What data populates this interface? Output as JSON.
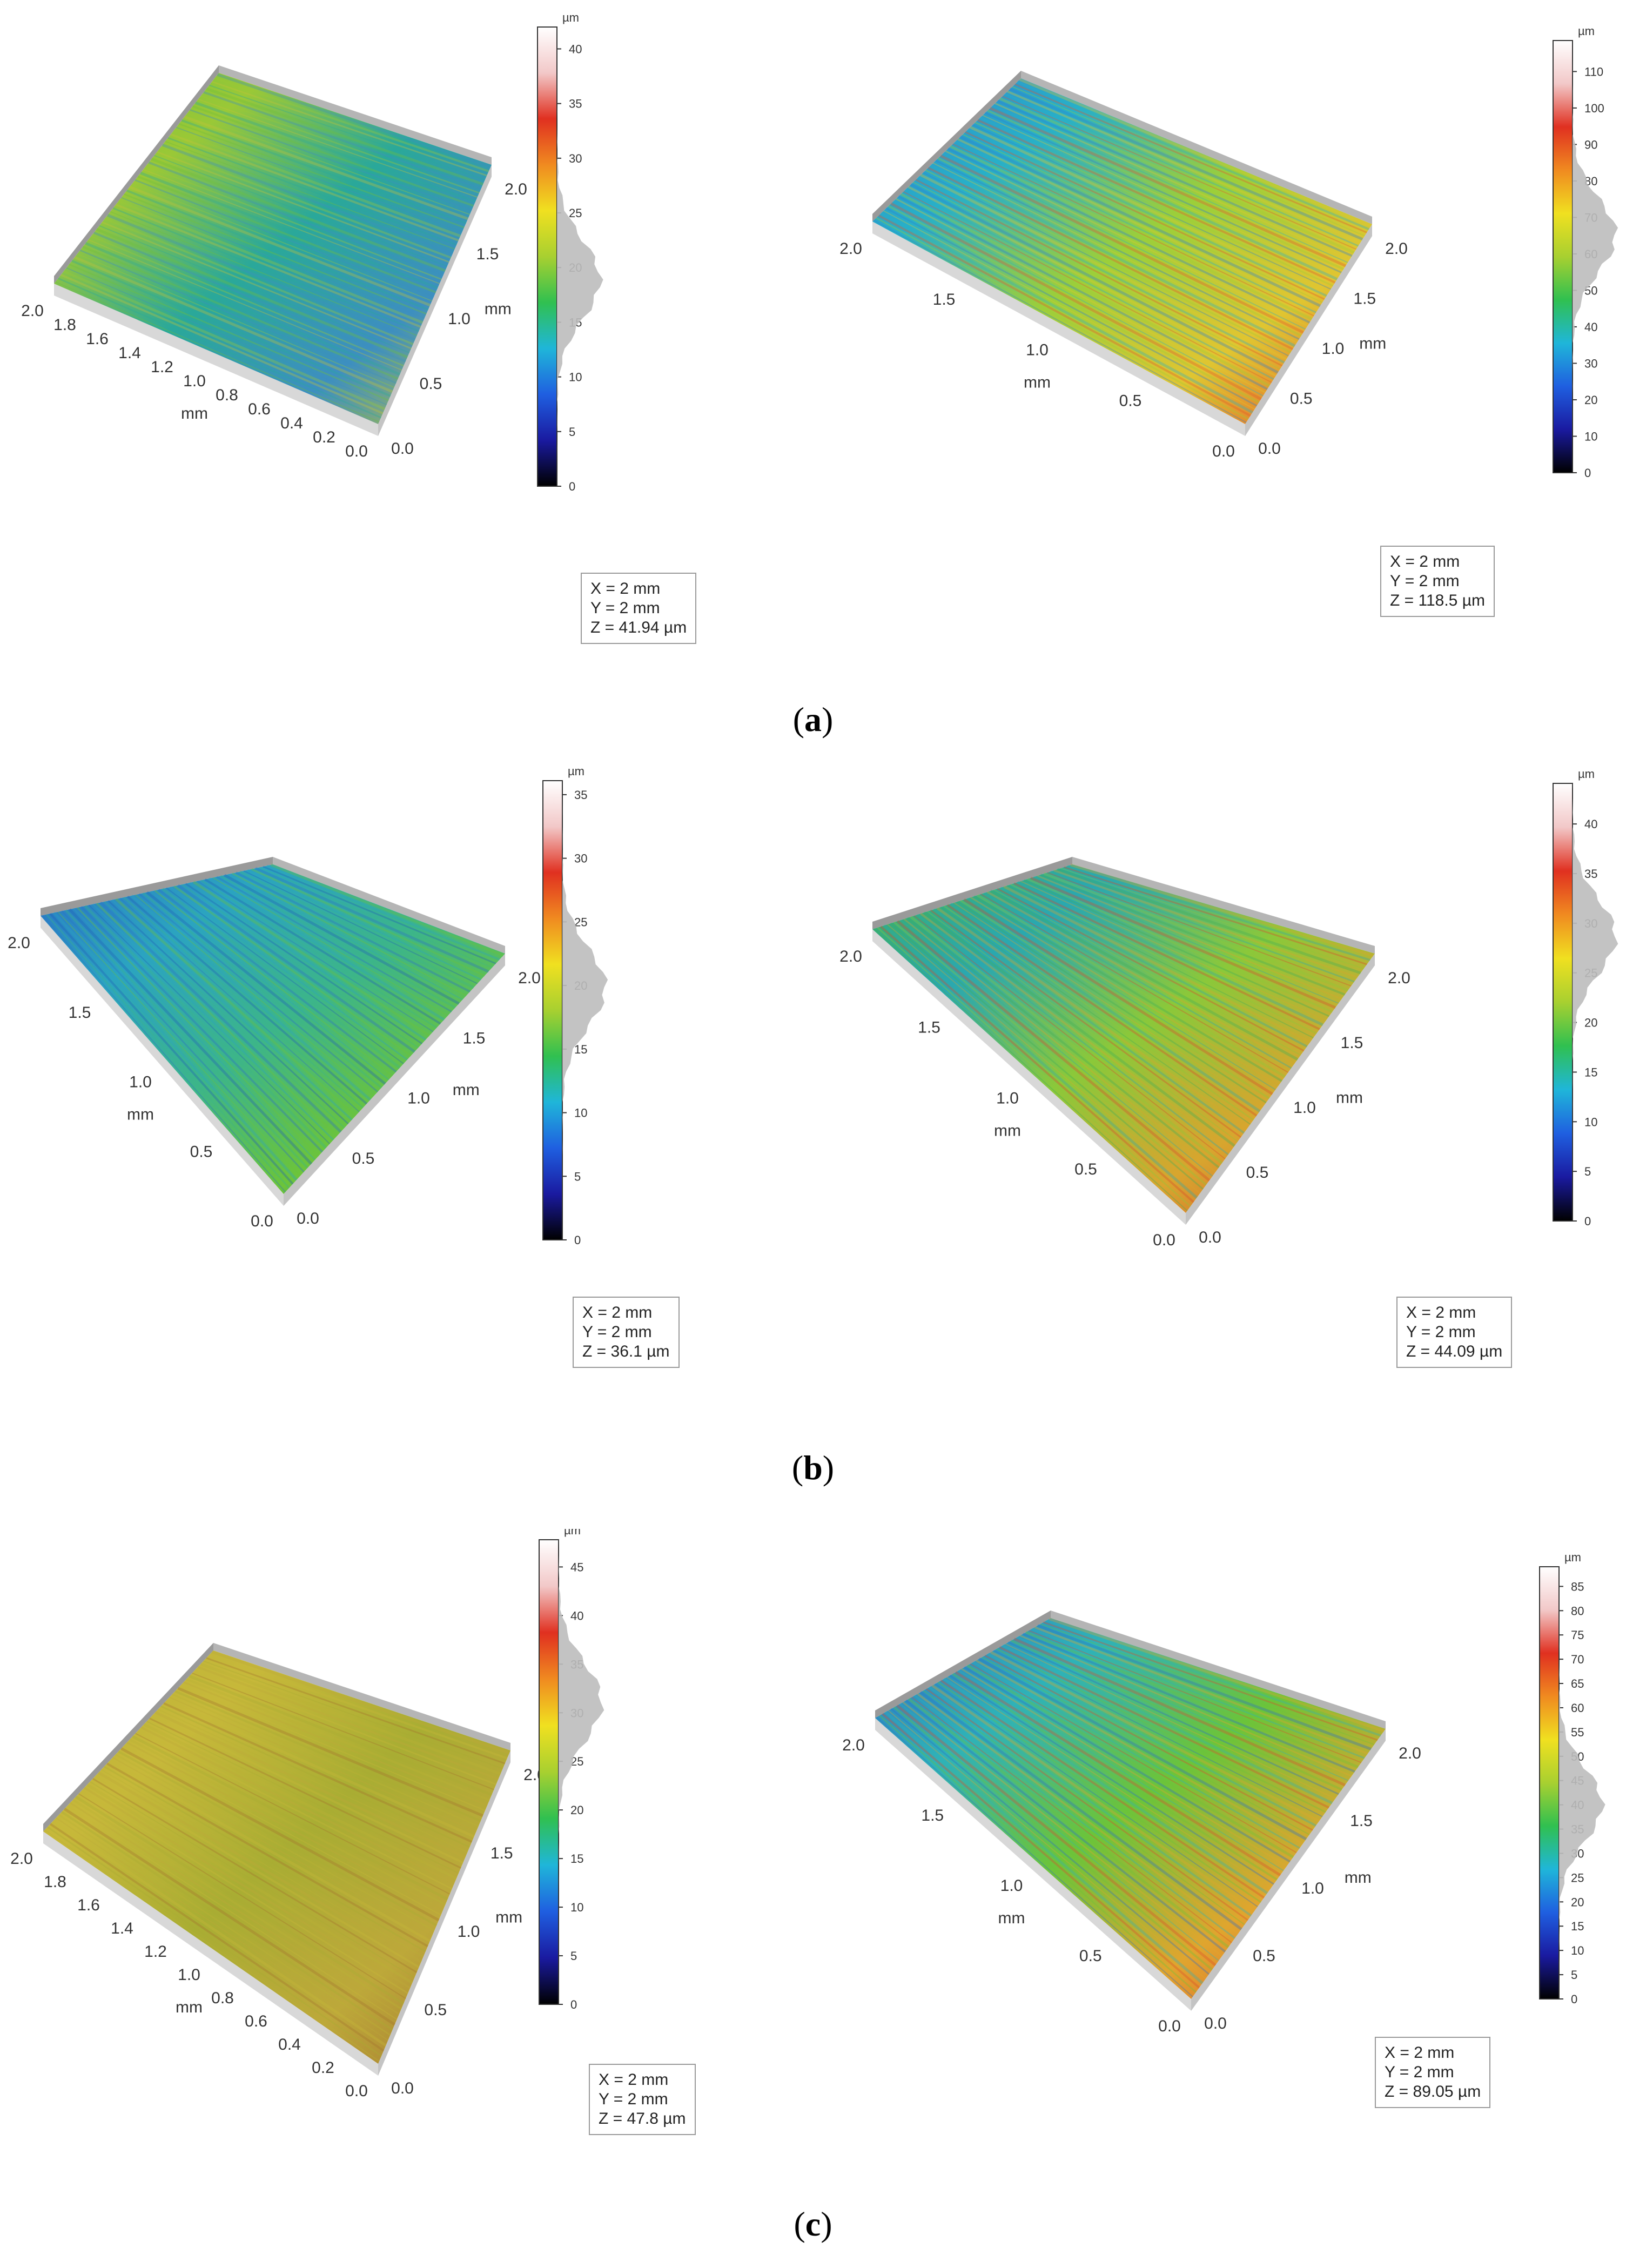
{
  "figure": {
    "panels": [
      {
        "row_label": "a",
        "plots": [
          {
            "info": {
              "x": "X = 2 mm",
              "y": "Y = 2 mm",
              "z": "Z = 41.94 µm"
            },
            "colorbar": {
              "unit": "µm",
              "min": 0,
              "max": 42,
              "ticks": [
                "0",
                "5",
                "10",
                "15",
                "20",
                "25",
                "30",
                "35",
                "40"
              ]
            },
            "axis_left": {
              "ticks": [
                "2.0",
                "1.8",
                "1.6",
                "1.4",
                "1.2",
                "1.0",
                "0.8",
                "0.6",
                "0.4",
                "0.2",
                "0.0"
              ],
              "label": "mm"
            },
            "axis_right": {
              "ticks": [
                "0.0",
                "0.5",
                "1.0",
                "1.5",
                "2.0"
              ],
              "label": "mm"
            },
            "surface": {
              "palette": [
                "#6fbf3a",
                "#9ac837",
                "#2aa89a",
                "#3d8fc0",
                "#c3c23a"
              ]
            }
          },
          {
            "info": {
              "x": "X = 2 mm",
              "y": "Y = 2 mm",
              "z": "Z = 118.5 µm"
            },
            "colorbar": {
              "unit": "µm",
              "min": 0,
              "max": 118.5,
              "ticks": [
                "0",
                "10",
                "20",
                "30",
                "40",
                "50",
                "60",
                "70",
                "80",
                "90",
                "100",
                "110"
              ]
            },
            "axis_left": {
              "ticks": [
                "2.0",
                "1.5",
                "1.0",
                "0.5",
                "0.0"
              ],
              "label": "mm"
            },
            "axis_right": {
              "ticks": [
                "0.0",
                "0.5",
                "1.0",
                "1.5",
                "2.0"
              ],
              "label": "mm"
            },
            "surface": {
              "palette": [
                "#2f7fd0",
                "#28b0c8",
                "#9ccf3a",
                "#e0c531",
                "#e5542a"
              ]
            }
          }
        ]
      },
      {
        "row_label": "b",
        "plots": [
          {
            "info": {
              "x": "X = 2 mm",
              "y": "Y = 2 mm",
              "z": "Z = 36.1 µm"
            },
            "colorbar": {
              "unit": "µm",
              "min": 0,
              "max": 36.1,
              "ticks": [
                "0",
                "5",
                "10",
                "15",
                "20",
                "25",
                "30",
                "35"
              ]
            },
            "axis_left": {
              "ticks": [
                "2.0",
                "1.5",
                "1.0",
                "0.5",
                "0.0"
              ],
              "label": "mm"
            },
            "axis_right": {
              "ticks": [
                "0.0",
                "0.5",
                "1.0",
                "1.5",
                "2.0"
              ],
              "label": "mm"
            },
            "surface": {
              "palette": [
                "#2a6fc6",
                "#2ba4c0",
                "#3cb58a",
                "#6cc43a",
                "#1f5fb8"
              ]
            }
          },
          {
            "info": {
              "x": "X = 2 mm",
              "y": "Y = 2 mm",
              "z": "Z = 44.09 µm"
            },
            "colorbar": {
              "unit": "µm",
              "min": 0,
              "max": 44.09,
              "ticks": [
                "0",
                "5",
                "10",
                "15",
                "20",
                "25",
                "30",
                "35",
                "40"
              ]
            },
            "axis_left": {
              "ticks": [
                "2.0",
                "1.5",
                "1.0",
                "0.5",
                "0.0"
              ],
              "label": "mm"
            },
            "axis_right": {
              "ticks": [
                "0.0",
                "0.5",
                "1.0",
                "1.5",
                "2.0"
              ],
              "label": "mm"
            },
            "surface": {
              "palette": [
                "#3fb05a",
                "#2aa8b0",
                "#8bc83a",
                "#d8a52e",
                "#d9492a"
              ]
            }
          }
        ]
      },
      {
        "row_label": "c",
        "plots": [
          {
            "info": {
              "x": "X = 2 mm",
              "y": "Y = 2 mm",
              "z": "Z = 47.8 µm"
            },
            "colorbar": {
              "unit": "µm",
              "min": 0,
              "max": 47.8,
              "ticks": [
                "0",
                "5",
                "10",
                "15",
                "20",
                "25",
                "30",
                "35",
                "40",
                "45"
              ]
            },
            "axis_left": {
              "ticks": [
                "2.0",
                "1.8",
                "1.6",
                "1.4",
                "1.2",
                "1.0",
                "0.8",
                "0.6",
                "0.4",
                "0.2",
                "0.0"
              ],
              "label": "mm"
            },
            "axis_right": {
              "ticks": [
                "0.0",
                "0.5",
                "1.0",
                "1.5",
                "2.0"
              ],
              "label": "mm"
            },
            "surface": {
              "palette": [
                "#b9b236",
                "#c7b83a",
                "#a9ad33",
                "#bda83a",
                "#a3742f"
              ]
            }
          },
          {
            "info": {
              "x": "X = 2 mm",
              "y": "Y = 2 mm",
              "z": "Z = 89.05 µm"
            },
            "colorbar": {
              "unit": "µm",
              "min": 0,
              "max": 89.05,
              "ticks": [
                "0",
                "5",
                "10",
                "15",
                "20",
                "25",
                "30",
                "35",
                "40",
                "45",
                "50",
                "55",
                "60",
                "65",
                "70",
                "75",
                "80",
                "85"
              ]
            },
            "axis_left": {
              "ticks": [
                "2.0",
                "1.5",
                "1.0",
                "0.5",
                "0.0"
              ],
              "label": "mm"
            },
            "axis_right": {
              "ticks": [
                "0.0",
                "0.5",
                "1.0",
                "1.5",
                "2.0"
              ],
              "label": "mm"
            },
            "surface": {
              "palette": [
                "#2c6ec8",
                "#2fb2b8",
                "#6cc43a",
                "#e0a52e",
                "#dd4a2a"
              ]
            }
          }
        ]
      }
    ]
  }
}
